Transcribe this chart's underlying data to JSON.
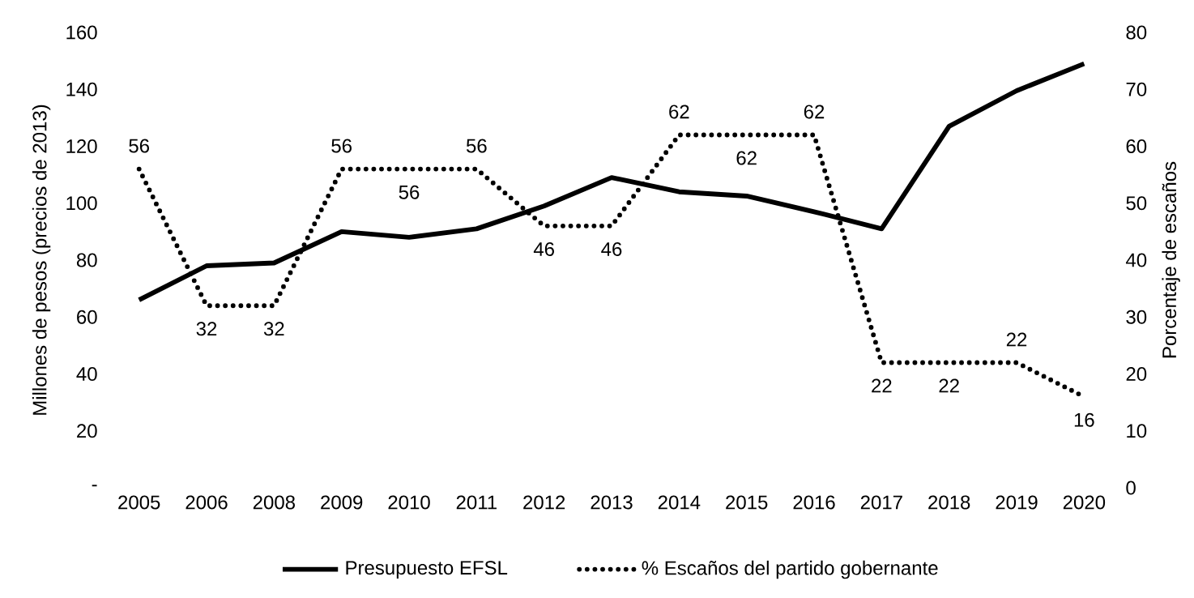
{
  "chart_data": {
    "type": "line",
    "categories": [
      "2005",
      "2006",
      "2008",
      "2009",
      "2010",
      "2011",
      "2012",
      "2013",
      "2014",
      "2015",
      "2016",
      "2017",
      "2018",
      "2019",
      "2020"
    ],
    "ylabel": "Millones de pesos (precios de 2013)",
    "y2label": "Porcentaje de escaños",
    "ylim": [
      0,
      160
    ],
    "yticks": [
      {
        "value": 0,
        "label": "-"
      },
      20,
      40,
      60,
      80,
      100,
      120,
      140,
      160
    ],
    "y2lim": [
      0,
      80
    ],
    "y2ticks": [
      0,
      10,
      20,
      30,
      40,
      50,
      60,
      70,
      80
    ],
    "series": [
      {
        "name": "Presupuesto EFSL",
        "color": "#000000",
        "line_style": "solid",
        "values": [
          66,
          78,
          79,
          90,
          88,
          91,
          99,
          109,
          104,
          102.5,
          97,
          91,
          127,
          139.5,
          149
        ]
      },
      {
        "name": "% Escaños del partido gobernante",
        "color": "#000000",
        "line_style": "dotted",
        "axis": "y2",
        "values": [
          56,
          32,
          32,
          56,
          56,
          56,
          46,
          46,
          62,
          62,
          62,
          22,
          22,
          22,
          16
        ],
        "value_labels": [
          "56",
          "32",
          "32",
          "56",
          "56",
          "56",
          "46",
          "46",
          "62",
          "62",
          "62",
          "22",
          "22",
          "22",
          "16"
        ]
      }
    ],
    "legend": "bottom",
    "grid": false,
    "marker": "none"
  }
}
